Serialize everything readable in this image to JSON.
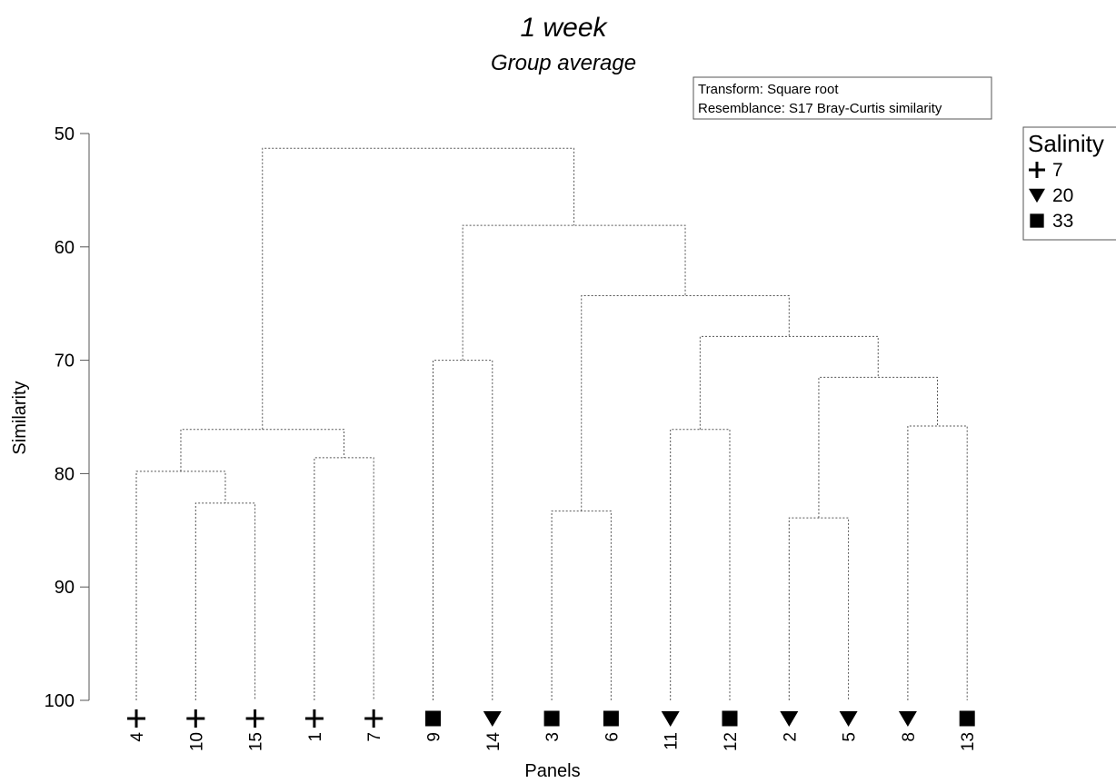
{
  "chart_data": {
    "type": "dendrogram",
    "title": "1 week",
    "subtitle": "Group average",
    "ylabel": "Similarity",
    "xlabel": "Panels",
    "ylim": [
      50,
      100
    ],
    "y_ticks": [
      "50",
      "60",
      "70",
      "80",
      "90",
      "100"
    ],
    "y_tick_values": [
      50,
      60,
      70,
      80,
      90,
      100
    ],
    "info": [
      "Transform: Square root",
      "Resemblance: S17 Bray-Curtis similarity"
    ],
    "legend": {
      "title": "Salinity",
      "placement": "top-right",
      "entries": [
        {
          "symbol": "plus",
          "label": "7"
        },
        {
          "symbol": "triangle-down",
          "label": "20"
        },
        {
          "symbol": "square",
          "label": "33"
        }
      ]
    },
    "leaves": [
      {
        "label": "4",
        "salinity": "7"
      },
      {
        "label": "10",
        "salinity": "7"
      },
      {
        "label": "15",
        "salinity": "7"
      },
      {
        "label": "1",
        "salinity": "7"
      },
      {
        "label": "7",
        "salinity": "7"
      },
      {
        "label": "9",
        "salinity": "33"
      },
      {
        "label": "14",
        "salinity": "20"
      },
      {
        "label": "3",
        "salinity": "33"
      },
      {
        "label": "6",
        "salinity": "33"
      },
      {
        "label": "11",
        "salinity": "20"
      },
      {
        "label": "12",
        "salinity": "33"
      },
      {
        "label": "2",
        "salinity": "20"
      },
      {
        "label": "5",
        "salinity": "20"
      },
      {
        "label": "8",
        "salinity": "20"
      },
      {
        "label": "13",
        "salinity": "33"
      }
    ],
    "merges": [
      {
        "id": "A",
        "left": "10",
        "right": "15",
        "similarity": 82.6
      },
      {
        "id": "B",
        "left": "4",
        "right": "A",
        "similarity": 79.8
      },
      {
        "id": "C",
        "left": "1",
        "right": "7",
        "similarity": 78.6
      },
      {
        "id": "D",
        "left": "B",
        "right": "C",
        "similarity": 76.1
      },
      {
        "id": "E",
        "left": "9",
        "right": "14",
        "similarity": 70.0
      },
      {
        "id": "F",
        "left": "3",
        "right": "6",
        "similarity": 83.3
      },
      {
        "id": "G",
        "left": "11",
        "right": "12",
        "similarity": 76.1
      },
      {
        "id": "H",
        "left": "2",
        "right": "5",
        "similarity": 83.9
      },
      {
        "id": "I",
        "left": "8",
        "right": "13",
        "similarity": 75.8
      },
      {
        "id": "J",
        "left": "H",
        "right": "I",
        "similarity": 71.5
      },
      {
        "id": "K",
        "left": "G",
        "right": "J",
        "similarity": 67.9
      },
      {
        "id": "L",
        "left": "F",
        "right": "K",
        "similarity": 64.3
      },
      {
        "id": "M",
        "left": "E",
        "right": "L",
        "similarity": 58.1
      },
      {
        "id": "N",
        "left": "D",
        "right": "M",
        "similarity": 51.3
      }
    ]
  }
}
